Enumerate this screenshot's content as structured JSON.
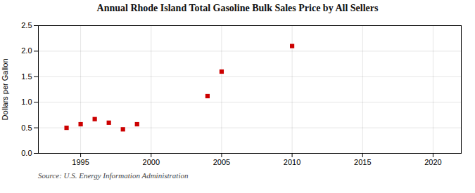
{
  "chart_data": {
    "type": "scatter",
    "title": "Annual Rhode Island Total Gasoline Bulk Sales Price by All Sellers",
    "ylabel": "Dollars per Gallon",
    "source": "Source: U.S. Energy Information Administration",
    "x": [
      1994,
      1995,
      1996,
      1997,
      1998,
      1999,
      2004,
      2005,
      2010
    ],
    "values": [
      0.5,
      0.57,
      0.67,
      0.6,
      0.47,
      0.57,
      1.12,
      1.6,
      2.1
    ],
    "color": "#cc0000",
    "marker": "square",
    "xlim": [
      1992,
      2022
    ],
    "ylim": [
      0.0,
      2.5
    ],
    "xticks": [
      1995,
      2000,
      2005,
      2010,
      2015,
      2020
    ],
    "yticks": [
      {
        "value": 0.0,
        "label": "0.0"
      },
      0.5,
      {
        "value": 1.0,
        "label": "1.0"
      },
      1.5,
      {
        "value": 2.0,
        "label": "2.0"
      },
      2.5
    ],
    "grid": true
  }
}
